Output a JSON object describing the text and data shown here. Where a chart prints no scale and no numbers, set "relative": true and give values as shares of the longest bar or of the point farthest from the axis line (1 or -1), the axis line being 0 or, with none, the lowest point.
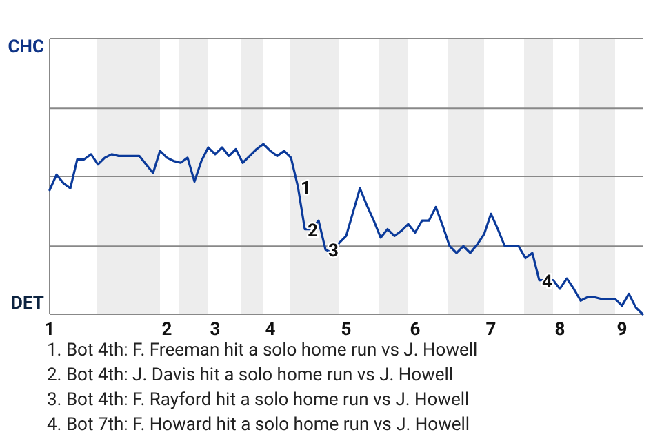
{
  "chart_data": {
    "type": "line",
    "relative": true,
    "categories": [
      "1",
      null,
      null,
      null,
      null,
      null,
      null,
      null,
      null,
      null,
      null,
      null,
      null,
      null,
      null,
      null,
      null,
      "2",
      null,
      null,
      null,
      null,
      null,
      null,
      "3",
      null,
      null,
      null,
      null,
      null,
      null,
      null,
      "4",
      null,
      null,
      null,
      null,
      null,
      null,
      null,
      null,
      null,
      null,
      "5",
      null,
      null,
      null,
      null,
      null,
      null,
      null,
      null,
      null,
      "6",
      null,
      null,
      null,
      null,
      null,
      null,
      null,
      null,
      null,
      null,
      "7",
      null,
      null,
      null,
      null,
      null,
      null,
      null,
      null,
      null,
      "8",
      null,
      null,
      null,
      null,
      null,
      null,
      null,
      null,
      "9",
      null,
      null,
      null
    ],
    "marker": "none",
    "line_style": "solid",
    "ref_lines": [
      {
        "axis": "y",
        "value": 0.4,
        "color": "#888888"
      },
      {
        "axis": "y",
        "value": 0.81,
        "color": "#888888"
      },
      {
        "axis": "y",
        "value": 1.21,
        "color": "#888888"
      },
      {
        "axis": "y",
        "value": 1.62,
        "color": "#888888"
      }
    ],
    "series": [
      {
        "color": "#0b3a9a",
        "values": [
          0.73,
          0.82,
          0.77,
          0.74,
          0.91,
          0.91,
          0.94,
          0.88,
          0.92,
          0.94,
          0.93,
          0.93,
          0.93,
          0.93,
          0.88,
          0.83,
          0.96,
          0.92,
          0.9,
          0.89,
          0.92,
          0.78,
          0.9,
          0.98,
          0.94,
          0.98,
          0.93,
          0.97,
          0.89,
          0.93,
          0.97,
          1,
          0.96,
          0.93,
          0.96,
          0.92,
          0.75,
          0.5,
          0.5,
          0.55,
          0.38,
          0.36,
          0.42,
          0.46,
          0.6,
          0.74,
          0.64,
          0.55,
          0.45,
          0.5,
          0.46,
          0.49,
          0.53,
          0.48,
          0.55,
          0.55,
          0.63,
          0.52,
          0.4,
          0.36,
          0.4,
          0.36,
          0.41,
          0.47,
          0.59,
          0.5,
          0.4,
          0.4,
          0.4,
          0.33,
          0.36,
          0.2,
          0.2,
          0.2,
          0.15,
          0.21,
          0.15,
          0.08,
          0.1,
          0.1,
          0.09,
          0.09,
          0.09,
          0.05,
          0.12,
          0.04,
          0
        ]
      }
    ],
    "annotations": [
      "CHC",
      "DET",
      {
        "text": "1",
        "y": 0.75
      },
      {
        "text": "2",
        "y": 0.5
      },
      {
        "text": "3",
        "y": 0.38
      },
      {
        "text": "4",
        "y": 0.2
      },
      "1. Bot 4th: F. Freeman hit a solo home run vs J. Howell",
      "2. Bot 4th: J. Davis hit a solo home run vs J. Howell",
      "3. Bot 4th: F. Rayford hit a solo home run vs J. Howell",
      "4. Bot 7th: F. Howard hit a solo home run vs J. Howell"
    ]
  }
}
